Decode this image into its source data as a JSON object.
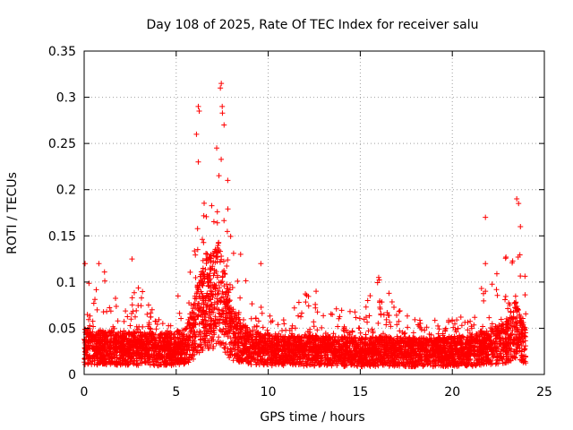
{
  "chart_data": {
    "type": "scatter",
    "title": "Day 108 of 2025, Rate Of TEC Index for receiver salu",
    "xlabel": "GPS time / hours",
    "ylabel": "ROTI / TECUs",
    "xlim": [
      0,
      25
    ],
    "ylim": [
      0,
      0.35
    ],
    "x_ticks": [
      0,
      5,
      10,
      15,
      20,
      25
    ],
    "x_tick_labels": [
      "0",
      "5",
      "10",
      "15",
      "20",
      "25"
    ],
    "y_ticks": [
      0,
      0.05,
      0.1,
      0.15,
      0.2,
      0.25,
      0.3,
      0.35
    ],
    "y_tick_labels": [
      "0",
      "0.05",
      "0.1",
      "0.15",
      "0.2",
      "0.25",
      "0.3",
      "0.35"
    ],
    "grid": true,
    "marker": "+",
    "series_color": "#ff0000",
    "x_range_of_data": [
      0,
      24
    ],
    "envelope": {
      "x": [
        0,
        0.5,
        1,
        2,
        3,
        4,
        5,
        5.5,
        6,
        6.3,
        6.6,
        7,
        7.2,
        7.4,
        7.6,
        8,
        8.5,
        9,
        10,
        11,
        12,
        13,
        14,
        15,
        16,
        17,
        18,
        19,
        20,
        21,
        22,
        23,
        23.4,
        23.7,
        24
      ],
      "y_max": [
        0.12,
        0.08,
        0.12,
        0.08,
        0.1,
        0.06,
        0.06,
        0.09,
        0.16,
        0.29,
        0.2,
        0.19,
        0.25,
        0.315,
        0.3,
        0.15,
        0.12,
        0.09,
        0.07,
        0.06,
        0.09,
        0.07,
        0.075,
        0.065,
        0.105,
        0.075,
        0.06,
        0.06,
        0.065,
        0.06,
        0.12,
        0.13,
        0.19,
        0.15,
        0.1
      ],
      "y_typical": [
        0.03,
        0.028,
        0.03,
        0.028,
        0.028,
        0.027,
        0.028,
        0.03,
        0.05,
        0.07,
        0.08,
        0.08,
        0.09,
        0.09,
        0.07,
        0.045,
        0.035,
        0.03,
        0.026,
        0.025,
        0.026,
        0.025,
        0.025,
        0.024,
        0.025,
        0.025,
        0.024,
        0.024,
        0.025,
        0.025,
        0.03,
        0.035,
        0.05,
        0.04,
        0.03
      ]
    },
    "notable_points": [
      {
        "x": 7.45,
        "y": 0.315
      },
      {
        "x": 7.4,
        "y": 0.31
      },
      {
        "x": 6.2,
        "y": 0.29
      },
      {
        "x": 6.25,
        "y": 0.285
      },
      {
        "x": 7.5,
        "y": 0.29
      },
      {
        "x": 7.6,
        "y": 0.27
      },
      {
        "x": 6.1,
        "y": 0.26
      },
      {
        "x": 7.2,
        "y": 0.245
      },
      {
        "x": 6.2,
        "y": 0.23
      },
      {
        "x": 7.8,
        "y": 0.21
      },
      {
        "x": 21.8,
        "y": 0.17
      },
      {
        "x": 23.5,
        "y": 0.19
      },
      {
        "x": 23.6,
        "y": 0.185
      },
      {
        "x": 23.7,
        "y": 0.16
      },
      {
        "x": 0.05,
        "y": 0.12
      },
      {
        "x": 0.8,
        "y": 0.12
      },
      {
        "x": 2.6,
        "y": 0.125
      },
      {
        "x": 5.1,
        "y": 0.085
      },
      {
        "x": 8.5,
        "y": 0.13
      },
      {
        "x": 9.6,
        "y": 0.12
      },
      {
        "x": 16.0,
        "y": 0.105
      },
      {
        "x": 12.6,
        "y": 0.09
      },
      {
        "x": 21.8,
        "y": 0.12
      },
      {
        "x": 21.8,
        "y": 0.09
      }
    ]
  }
}
